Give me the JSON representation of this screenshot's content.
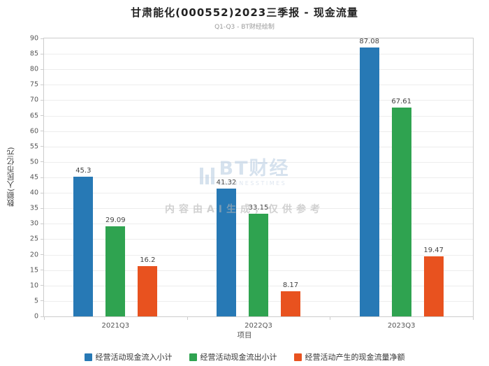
{
  "title": "甘肃能化(000552)2023三季报 - 现金流量",
  "subtitle": "Q1-Q3 - BT财经绘制",
  "watermark": {
    "logo_text": "BT财经",
    "logo_sub": "BUSINESSTIMES",
    "note": "内容由AI生成，仅供参考"
  },
  "chart_data": {
    "type": "bar",
    "categories": [
      "2021Q3",
      "2022Q3",
      "2023Q3"
    ],
    "series": [
      {
        "name": "经营活动现金流入小计",
        "color": "#2779b5",
        "values": [
          45.3,
          41.32,
          87.08
        ]
      },
      {
        "name": "经营活动现金流出小计",
        "color": "#2fa350",
        "values": [
          29.09,
          33.15,
          67.61
        ]
      },
      {
        "name": "经营活动产生的现金流量净额",
        "color": "#e8521f",
        "values": [
          16.2,
          8.17,
          19.47
        ]
      }
    ],
    "xlabel": "项目",
    "ylabel": "数额(人民币亿元)",
    "ylim": [
      0,
      90
    ],
    "ytick_step": 5,
    "grid": true,
    "legend_position": "bottom"
  }
}
